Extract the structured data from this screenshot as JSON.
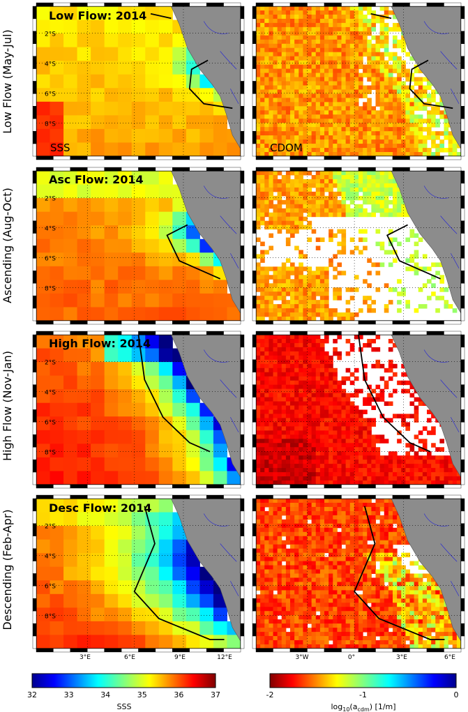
{
  "row_labels": [
    "Low Flow (May-Jul)",
    "Ascending (Aug-Oct)",
    "High Flow (Nov-Jan)",
    "Descending (Feb-Apr)"
  ],
  "sss_panel_titles": [
    "Low Flow: 2014",
    "Asc Flow: 2014",
    "High Flow: 2014",
    "Desc Flow: 2014"
  ],
  "variable_tags": {
    "left": "SSS",
    "right": "CDOM"
  },
  "lat_ticks": [
    "2°S",
    "4°S",
    "6°S",
    "8°S"
  ],
  "left_lon_ticks": [
    "3°E",
    "6°E",
    "9°E",
    "12°E"
  ],
  "right_lon_ticks": [
    "3°W",
    "0°",
    "3°E",
    "6°E"
  ],
  "colorbars": {
    "sss": {
      "ticks": [
        "32",
        "33",
        "34",
        "35",
        "36",
        "37"
      ],
      "label": "SSS"
    },
    "cdom": {
      "ticks": [
        "-2",
        "-1",
        "0"
      ],
      "label": "log10(acdm) [1/m]",
      "label_main": "log",
      "label_sub1": "10",
      "label_mid": "(a",
      "label_sub2": "cdm",
      "label_end": ") [1/m]"
    }
  },
  "colors": {
    "land": "#8c8c8c",
    "river": "#2a2ad0",
    "contour": "#000000",
    "nodata": "#ffffff"
  }
}
